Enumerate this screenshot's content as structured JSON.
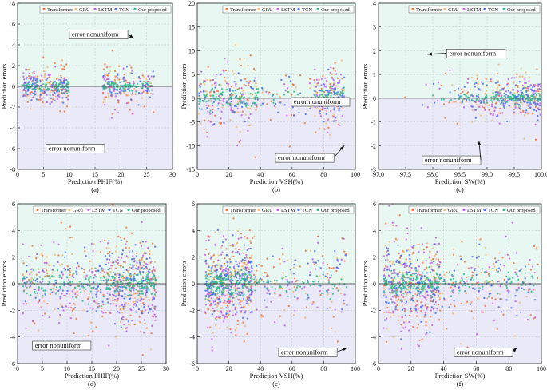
{
  "colors": {
    "Transformer": "#f0743c",
    "GRU": "#f3b878",
    "LSTM": "#c45cf0",
    "TCN": "#4a6cf5",
    "Our proposed": "#2fbf8c",
    "bg_top": "#e8f7f2",
    "bg_bottom": "#e9e9f8"
  },
  "chart_data": [
    {
      "id": "a",
      "type": "scatter",
      "label": "(a)",
      "xlabel": "Prediction PHIF(%)",
      "ylabel": "Prediction errors",
      "xlim": [
        0,
        30
      ],
      "ylim": [
        -8,
        8
      ],
      "xticks": [
        0,
        5,
        10,
        15,
        20,
        25,
        30
      ],
      "yticks": [
        -8,
        -6,
        -4,
        -2,
        0,
        2,
        4,
        6,
        8
      ],
      "series": [
        "Transformer",
        "GRU",
        "LSTM",
        "TCN",
        "Our proposed"
      ],
      "annotations": [
        {
          "text": "error nonuniform",
          "tx": 10.5,
          "ty": 4.8,
          "ax": 22.5,
          "ay": 4.6
        },
        {
          "text": "error nonuniform",
          "tx": 6,
          "ty": -6.2,
          "ax": null,
          "ay": null
        }
      ]
    },
    {
      "id": "b",
      "type": "scatter",
      "label": "(b)",
      "xlabel": "Prediction VSH(%)",
      "ylabel": "Prediction errors",
      "xlim": [
        0,
        100
      ],
      "ylim": [
        -15,
        20
      ],
      "xticks": [
        0,
        20,
        40,
        60,
        80,
        100
      ],
      "yticks": [
        -15,
        -10,
        -5,
        0,
        5,
        10,
        15,
        20
      ],
      "series": [
        "Transformer",
        "GRU",
        "LSTM",
        "TCN",
        "Our proposed"
      ],
      "annotations": [
        {
          "text": "error nonuniform",
          "tx": 51,
          "ty": -13,
          "ax": 93,
          "ay": -10
        },
        {
          "text": "error nonuniform",
          "tx": 61,
          "ty": -1.2,
          "ax": null,
          "ay": null
        }
      ]
    },
    {
      "id": "c",
      "type": "scatter",
      "label": "(c)",
      "xlabel": "Prediction SW(%)",
      "ylabel": "Prediction errors",
      "xlim": [
        97,
        100
      ],
      "ylim": [
        -3,
        4
      ],
      "xticks": [
        97.0,
        97.5,
        98.0,
        98.5,
        99.0,
        99.5,
        100.0
      ],
      "yticks": [
        -3,
        -2,
        -1,
        0,
        1,
        2,
        3,
        4
      ],
      "series": [
        "Transformer",
        "GRU",
        "LSTM",
        "TCN",
        "Our proposed"
      ],
      "annotations": [
        {
          "text": "error nonuniform",
          "tx": 98.3,
          "ty": 1.8,
          "ax": 97.9,
          "ay": 1.85
        },
        {
          "text": "error nonuniform",
          "tx": 97.85,
          "ty": -2.7,
          "ax": 98.85,
          "ay": -1.8
        }
      ]
    },
    {
      "id": "d",
      "type": "scatter",
      "label": "(d)",
      "xlabel": "Prediction PHIF(%)",
      "ylabel": "Prediction errors",
      "xlim": [
        0,
        30
      ],
      "ylim": [
        -6,
        6
      ],
      "xticks": [
        0,
        5,
        10,
        15,
        20,
        25,
        30
      ],
      "yticks": [
        -6,
        -4,
        -2,
        0,
        2,
        4,
        6
      ],
      "series": [
        "Transformer",
        "GRU",
        "LSTM",
        "TCN",
        "Our proposed"
      ],
      "annotations": [
        {
          "text": "error nonuniform",
          "tx": 3.5,
          "ty": -4.8,
          "ax": null,
          "ay": null
        }
      ]
    },
    {
      "id": "e",
      "type": "scatter",
      "label": "(e)",
      "xlabel": "Prediction VSH(%)",
      "ylabel": "Prediction errors",
      "xlim": [
        0,
        100
      ],
      "ylim": [
        -6,
        6
      ],
      "xticks": [
        0,
        20,
        40,
        60,
        80,
        100
      ],
      "yticks": [
        -6,
        -4,
        -2,
        0,
        2,
        4,
        6
      ],
      "series": [
        "Transformer",
        "GRU",
        "LSTM",
        "TCN",
        "Our proposed"
      ],
      "annotations": [
        {
          "text": "error nonuniform",
          "tx": 53,
          "ty": -5.3,
          "ax": 95,
          "ay": -4.8
        }
      ]
    },
    {
      "id": "f",
      "type": "scatter",
      "label": "(f)",
      "xlabel": "Prediction SW(%)",
      "ylabel": "Prediction errors",
      "xlim": [
        0,
        100
      ],
      "ylim": [
        -6,
        6
      ],
      "xticks": [
        0,
        20,
        40,
        60,
        80,
        100
      ],
      "yticks": [
        -6,
        -4,
        -2,
        0,
        2,
        4,
        6
      ],
      "series": [
        "Transformer",
        "GRU",
        "LSTM",
        "TCN",
        "Our proposed"
      ],
      "annotations": [
        {
          "text": "error nonuniform",
          "tx": 48,
          "ty": -5.3,
          "ax": 85,
          "ay": -4.8
        }
      ]
    }
  ]
}
